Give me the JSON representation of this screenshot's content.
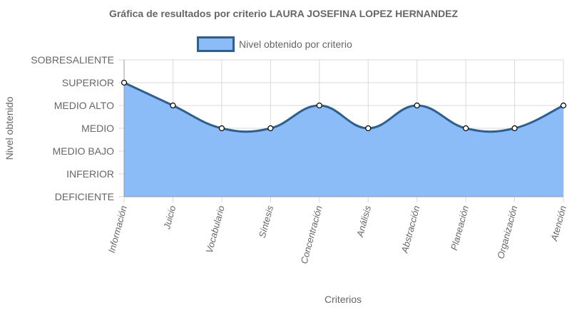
{
  "chart_data": {
    "type": "area",
    "title": "Gráfica de resultados por criterio LAURA JOSEFINA LOPEZ HERNANDEZ",
    "xlabel": "Criterios",
    "ylabel": "Nivel obtenido",
    "levels": [
      "DEFICIENTE",
      "INFERIOR",
      "MEDIO BAJO",
      "MEDIO",
      "MEDIO ALTO",
      "SUPERIOR",
      "SOBRESALIENTE"
    ],
    "categories": [
      "Información",
      "Juicio",
      "Vocabulario",
      "Síntesis",
      "Concentración",
      "Análisis",
      "Abstracción",
      "Planeación",
      "Organización",
      "Atención"
    ],
    "series": [
      {
        "name": "Nivel obtenido por criterio",
        "values": [
          5,
          4,
          3,
          3,
          4,
          3,
          4,
          3,
          3,
          4
        ],
        "fill_color": "#8bbcf7",
        "line_color": "#2f5f8f"
      }
    ],
    "ylim": [
      0,
      6
    ],
    "legend": "top-center",
    "grid": true
  }
}
